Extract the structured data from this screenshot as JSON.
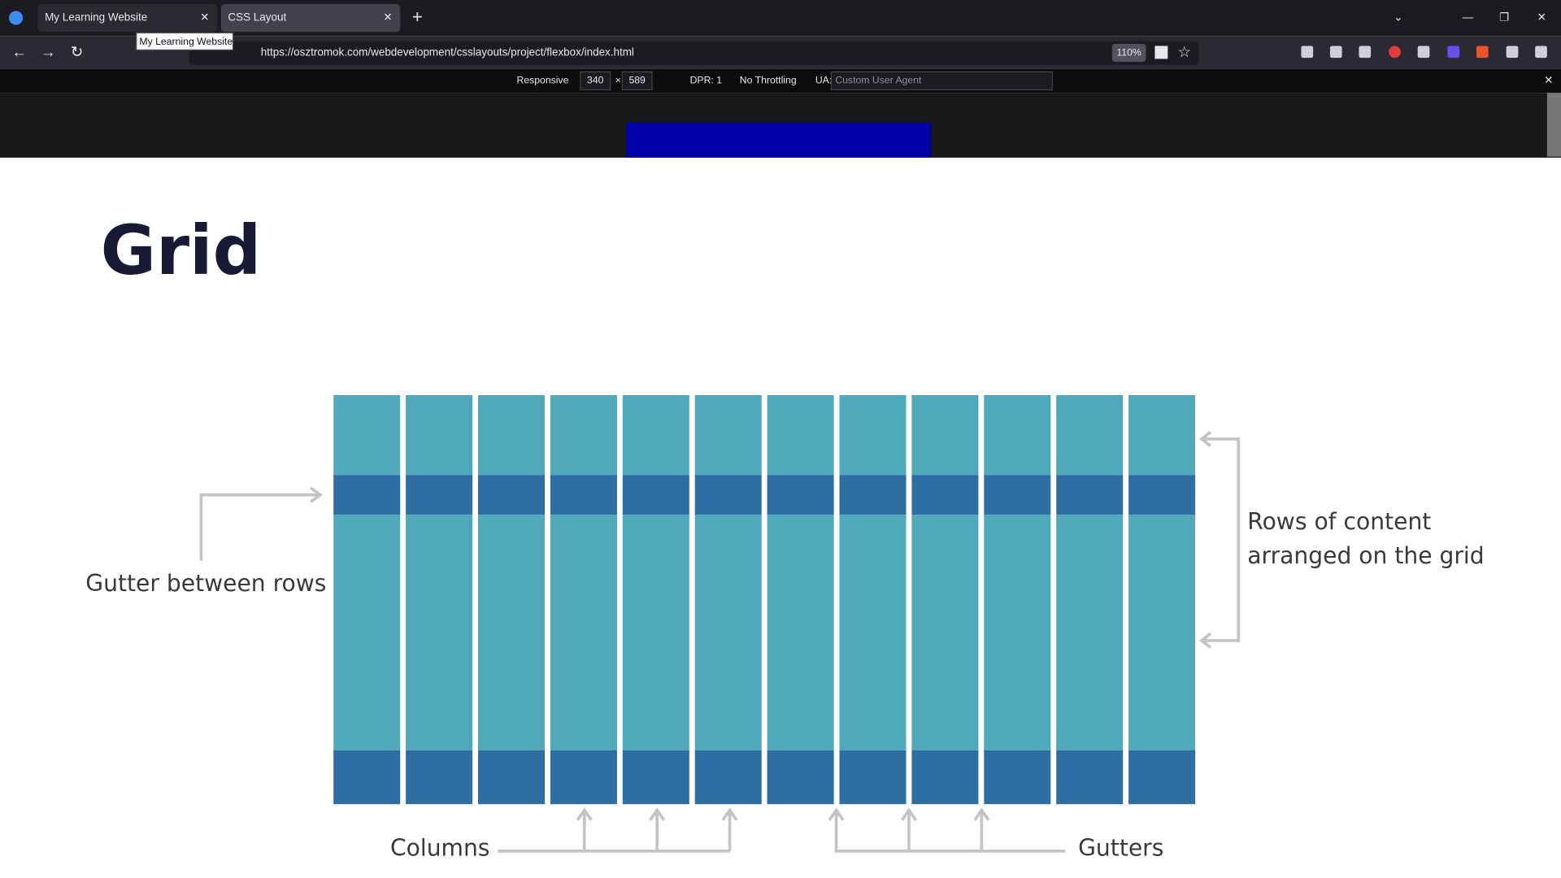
{
  "browser": {
    "tabs": [
      "My Learning Website",
      "CSS Layout"
    ],
    "tooltip": "My Learning Website",
    "url": "https://osztromok.com/webdevelopment/csslayouts/project/flexbox/index.html",
    "zoom": "110%"
  },
  "devtools": {
    "mode": "Responsive",
    "width": "340",
    "height": "589",
    "dpr": "DPR: 1",
    "throttling": "No Throttling",
    "ua_label": "UA:",
    "ua_placeholder": "Custom User Agent"
  },
  "content": {
    "heading": "Grid",
    "labels": {
      "gutter_rows": "Gutter between rows",
      "rows_content": [
        "Rows of content",
        "arranged on the grid"
      ],
      "columns": "Columns",
      "gutters": "Gutters"
    }
  }
}
